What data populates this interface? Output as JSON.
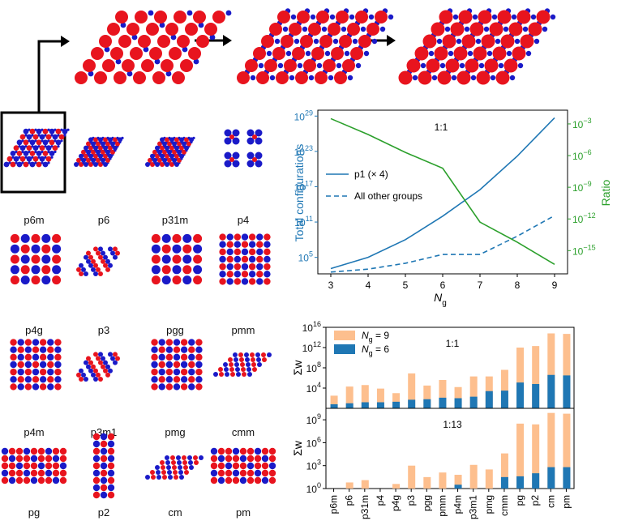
{
  "pipeline": {
    "description_steps": 3
  },
  "groups": [
    {
      "label": "p6m",
      "pattern": "hex"
    },
    {
      "label": "p6",
      "pattern": "hexdense"
    },
    {
      "label": "p31m",
      "pattern": "hexdense"
    },
    {
      "label": "p4",
      "pattern": "p4"
    },
    {
      "label": "p4g",
      "pattern": "square"
    },
    {
      "label": "p3",
      "pattern": "hexsparse"
    },
    {
      "label": "pgg",
      "pattern": "square"
    },
    {
      "label": "pmm",
      "pattern": "squaredense"
    },
    {
      "label": "p4m",
      "pattern": "squaredense"
    },
    {
      "label": "p3m1",
      "pattern": "hexsparse"
    },
    {
      "label": "pmg",
      "pattern": "squaredense"
    },
    {
      "label": "cmm",
      "pattern": "rhomb"
    },
    {
      "label": "pg",
      "pattern": "rect"
    },
    {
      "label": "p2",
      "pattern": "tall"
    },
    {
      "label": "cm",
      "pattern": "rhomb"
    },
    {
      "label": "pm",
      "pattern": "rect"
    }
  ],
  "colors": {
    "red": "#e8141e",
    "blue": "#1a1ac8",
    "line_blue": "#1f77b4",
    "green": "#2ca02c",
    "orange": "#fdbf8e",
    "bar_blue": "#1f77b4"
  },
  "chart_data": [
    {
      "type": "line",
      "label": "1:1",
      "x": [
        3,
        4,
        5,
        6,
        7,
        8,
        9
      ],
      "xlabel": "N",
      "xlabel_sub": "g",
      "xticks": [
        "3",
        "4",
        "5",
        "6",
        "7",
        "8",
        "9"
      ],
      "ylabel_left": "Total configurations",
      "ylabel_right": "Ratio",
      "left_axis": {
        "scale": "log10",
        "ylim_exp": [
          2.2,
          30
        ],
        "ticks": [
          {
            "base": "10",
            "exp": "29",
            "v": 29
          },
          {
            "base": "10",
            "exp": "23",
            "v": 23
          },
          {
            "base": "10",
            "exp": "17",
            "v": 17
          },
          {
            "base": "10",
            "exp": "11",
            "v": 11
          },
          {
            "base": "10",
            "exp": "5",
            "v": 5
          }
        ]
      },
      "right_axis": {
        "scale": "log10",
        "ylim_exp": [
          -17.2,
          -1.7
        ],
        "ticks": [
          {
            "base": "10",
            "exp": "−3",
            "v": -3
          },
          {
            "base": "10",
            "exp": "−6",
            "v": -6
          },
          {
            "base": "10",
            "exp": "−9",
            "v": -9
          },
          {
            "base": "10",
            "exp": "−12",
            "v": -12
          },
          {
            "base": "10",
            "exp": "−15",
            "v": -15
          }
        ]
      },
      "series": [
        {
          "name": "p1 (× 4)",
          "axis": "left",
          "style": "solid",
          "color": "#1f77b4",
          "log_values": [
            3.1,
            5.0,
            8.0,
            12.0,
            16.5,
            22.2,
            28.7
          ]
        },
        {
          "name": "All other groups",
          "axis": "left",
          "style": "dashed",
          "color": "#1f77b4",
          "log_values": [
            2.5,
            3.0,
            4.0,
            5.5,
            5.5,
            8.6,
            12.1
          ]
        },
        {
          "name": "Ratio",
          "axis": "right",
          "style": "solid",
          "color": "#2ca02c",
          "log_values": [
            -2.5,
            -4.0,
            -5.7,
            -7.2,
            -12.3,
            -14.2,
            -16.3
          ]
        }
      ],
      "legend": [
        "p1 (× 4)",
        "All other groups"
      ]
    },
    {
      "type": "bar",
      "label": "1:1",
      "ylabel": "Σw",
      "scale": "log10",
      "ylim_exp": [
        0,
        16
      ],
      "yticks": [
        {
          "base": "10",
          "exp": "16",
          "v": 16
        },
        {
          "base": "10",
          "exp": "12",
          "v": 12
        },
        {
          "base": "10",
          "exp": "8",
          "v": 8
        },
        {
          "base": "10",
          "exp": "4",
          "v": 4
        }
      ],
      "categories": [
        "p6m",
        "p6",
        "p31m",
        "p4",
        "p4g",
        "p3",
        "pgg",
        "pmm",
        "p4m",
        "p3m1",
        "pmg",
        "cmm",
        "pg",
        "p2",
        "cm",
        "pm"
      ],
      "series": [
        {
          "name": "N_g = 9",
          "color": "#fdbf8e",
          "log_values": [
            2.5,
            4.3,
            4.6,
            3.9,
            3.0,
            6.9,
            4.5,
            5.6,
            4.2,
            6.3,
            6.3,
            7.6,
            12.0,
            12.3,
            14.8,
            14.7
          ]
        },
        {
          "name": "N_g = 6",
          "color": "#1f77b4",
          "log_values": [
            0.8,
            1.0,
            1.2,
            1.2,
            1.3,
            1.7,
            1.8,
            2.1,
            2.0,
            2.3,
            3.4,
            3.5,
            5.1,
            4.8,
            6.6,
            6.5
          ]
        }
      ],
      "legend": [
        {
          "main": "N",
          "sub": "g",
          "rest": " = 9"
        },
        {
          "main": "N",
          "sub": "g",
          "rest": " = 6"
        }
      ]
    },
    {
      "type": "bar",
      "label": "1:13",
      "ylabel": "Σw",
      "scale": "log10",
      "ylim_exp": [
        0,
        10.5
      ],
      "yticks": [
        {
          "base": "10",
          "exp": "9",
          "v": 9
        },
        {
          "base": "10",
          "exp": "6",
          "v": 6
        },
        {
          "base": "10",
          "exp": "3",
          "v": 3
        },
        {
          "base": "10",
          "exp": "0",
          "v": 0
        }
      ],
      "categories": [
        "p6m",
        "p6",
        "p31m",
        "p4",
        "p4g",
        "p3",
        "pgg",
        "pmm",
        "p4m",
        "p3m1",
        "pmg",
        "cmm",
        "pg",
        "p2",
        "cm",
        "pm"
      ],
      "series": [
        {
          "name": "N_g = 9",
          "color": "#fdbf8e",
          "log_values": [
            0,
            0.8,
            1.1,
            0,
            0.6,
            3.0,
            1.5,
            2.1,
            1.8,
            3.1,
            2.5,
            4.6,
            8.5,
            8.4,
            9.9,
            9.8
          ]
        },
        {
          "name": "N_g = 6",
          "color": "#1f77b4",
          "log_values": [
            0,
            0,
            0,
            0,
            0,
            0,
            0,
            0,
            0.5,
            0,
            0,
            1.5,
            1.6,
            2.0,
            2.8,
            2.8
          ]
        }
      ]
    }
  ]
}
